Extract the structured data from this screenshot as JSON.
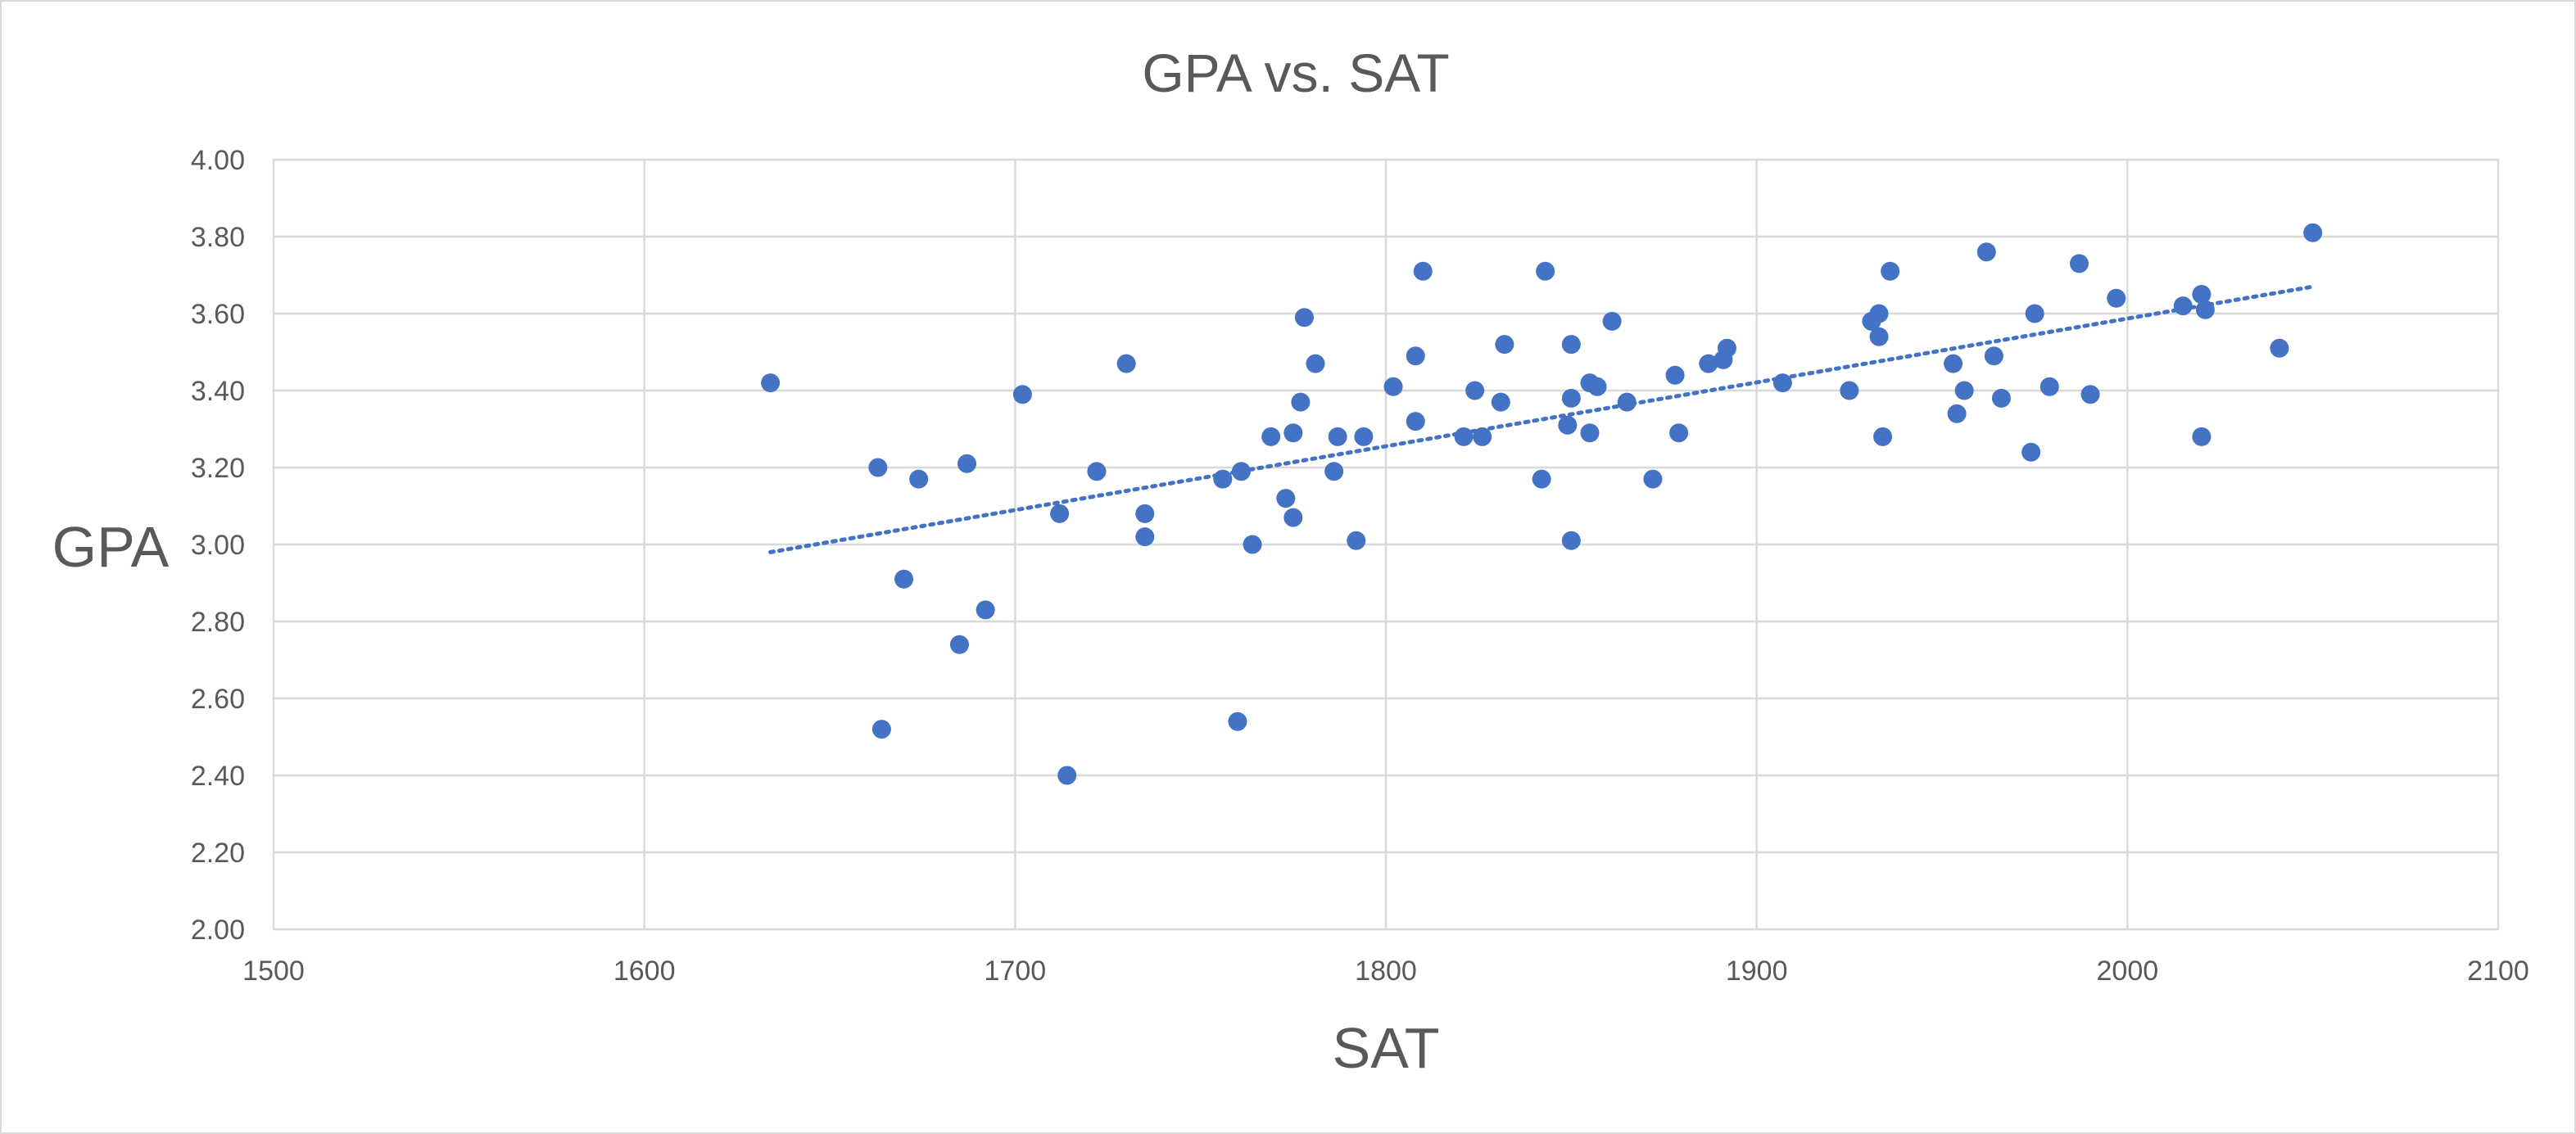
{
  "colors": {
    "series": "#4472c4",
    "grid": "#d9d9d9",
    "text": "#595959"
  },
  "chart_data": {
    "type": "scatter",
    "title": "GPA vs. SAT",
    "xlabel": "SAT",
    "ylabel": "GPA",
    "xlim": [
      1500,
      2100
    ],
    "ylim": [
      2.0,
      4.0
    ],
    "xticks": [
      "1500",
      "1600",
      "1700",
      "1800",
      "1900",
      "2000",
      "2100"
    ],
    "yticks": [
      "2.00",
      "2.20",
      "2.40",
      "2.60",
      "2.80",
      "3.00",
      "3.20",
      "3.40",
      "3.60",
      "3.80",
      "4.00"
    ],
    "grid": true,
    "legend": "none",
    "trendline": {
      "type": "linear",
      "x": [
        1634,
        2050
      ],
      "y": [
        2.98,
        3.67
      ],
      "style": "dotted"
    },
    "series": [
      {
        "points": [
          [
            1634,
            3.42
          ],
          [
            1663,
            3.2
          ],
          [
            1664,
            2.52
          ],
          [
            1670,
            2.91
          ],
          [
            1674,
            3.17
          ],
          [
            1685,
            2.74
          ],
          [
            1687,
            3.21
          ],
          [
            1692,
            2.83
          ],
          [
            1702,
            3.39
          ],
          [
            1712,
            3.08
          ],
          [
            1714,
            2.4
          ],
          [
            1722,
            3.19
          ],
          [
            1730,
            3.47
          ],
          [
            1735,
            3.08
          ],
          [
            1735,
            3.02
          ],
          [
            1756,
            3.17
          ],
          [
            1760,
            2.54
          ],
          [
            1761,
            3.19
          ],
          [
            1764,
            3.0
          ],
          [
            1769,
            3.28
          ],
          [
            1773,
            3.12
          ],
          [
            1775,
            3.29
          ],
          [
            1775,
            3.07
          ],
          [
            1777,
            3.37
          ],
          [
            1778,
            3.59
          ],
          [
            1781,
            3.47
          ],
          [
            1786,
            3.19
          ],
          [
            1787,
            3.28
          ],
          [
            1792,
            3.01
          ],
          [
            1794,
            3.28
          ],
          [
            1802,
            3.41
          ],
          [
            1808,
            3.49
          ],
          [
            1808,
            3.32
          ],
          [
            1810,
            3.71
          ],
          [
            1821,
            3.28
          ],
          [
            1824,
            3.4
          ],
          [
            1826,
            3.28
          ],
          [
            1831,
            3.37
          ],
          [
            1832,
            3.52
          ],
          [
            1842,
            3.17
          ],
          [
            1843,
            3.71
          ],
          [
            1849,
            3.31
          ],
          [
            1850,
            3.52
          ],
          [
            1850,
            3.38
          ],
          [
            1850,
            3.01
          ],
          [
            1855,
            3.42
          ],
          [
            1855,
            3.29
          ],
          [
            1857,
            3.41
          ],
          [
            1861,
            3.58
          ],
          [
            1865,
            3.37
          ],
          [
            1872,
            3.17
          ],
          [
            1878,
            3.44
          ],
          [
            1879,
            3.29
          ],
          [
            1887,
            3.47
          ],
          [
            1891,
            3.48
          ],
          [
            1892,
            3.51
          ],
          [
            1907,
            3.42
          ],
          [
            1925,
            3.4
          ],
          [
            1931,
            3.58
          ],
          [
            1933,
            3.6
          ],
          [
            1933,
            3.54
          ],
          [
            1934,
            3.28
          ],
          [
            1936,
            3.71
          ],
          [
            1953,
            3.47
          ],
          [
            1954,
            3.34
          ],
          [
            1956,
            3.4
          ],
          [
            1962,
            3.76
          ],
          [
            1964,
            3.49
          ],
          [
            1966,
            3.38
          ],
          [
            1974,
            3.24
          ],
          [
            1975,
            3.6
          ],
          [
            1979,
            3.41
          ],
          [
            1987,
            3.73
          ],
          [
            1990,
            3.39
          ],
          [
            1997,
            3.64
          ],
          [
            2015,
            3.62
          ],
          [
            2020,
            3.65
          ],
          [
            2020,
            3.28
          ],
          [
            2021,
            3.61
          ],
          [
            2041,
            3.51
          ],
          [
            2050,
            3.81
          ]
        ]
      }
    ]
  }
}
